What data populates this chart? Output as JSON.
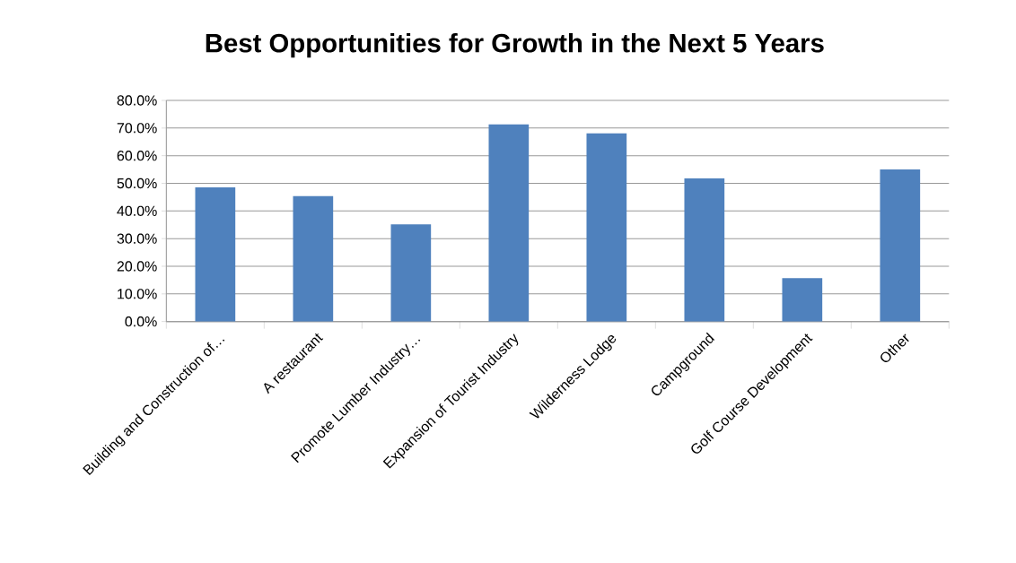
{
  "chart_data": {
    "type": "bar",
    "title": "Best Opportunities for Growth in the Next 5 Years",
    "categories": [
      "Building and Construction of…",
      "A restaurant",
      "Promote Lumber Industry…",
      "Expansion of Tourist Industry",
      "Wilderness Lodge",
      "Campground",
      "Golf Course Development",
      "Other"
    ],
    "values": [
      48.5,
      45.4,
      35.2,
      71.3,
      68.1,
      51.8,
      15.7,
      55.0
    ],
    "color": "#4f81bd",
    "ylim": [
      0,
      80
    ],
    "yticks": [
      {
        "value": 0,
        "label": "0.0%"
      },
      {
        "value": 10,
        "label": "10.0%"
      },
      {
        "value": 20,
        "label": "20.0%"
      },
      {
        "value": 30,
        "label": "30.0%"
      },
      {
        "value": 40,
        "label": "40.0%"
      },
      {
        "value": 50,
        "label": "50.0%"
      },
      {
        "value": 60,
        "label": "60.0%"
      },
      {
        "value": 70,
        "label": "70.0%"
      },
      {
        "value": 80,
        "label": "80.0%"
      }
    ],
    "grid": "y"
  }
}
